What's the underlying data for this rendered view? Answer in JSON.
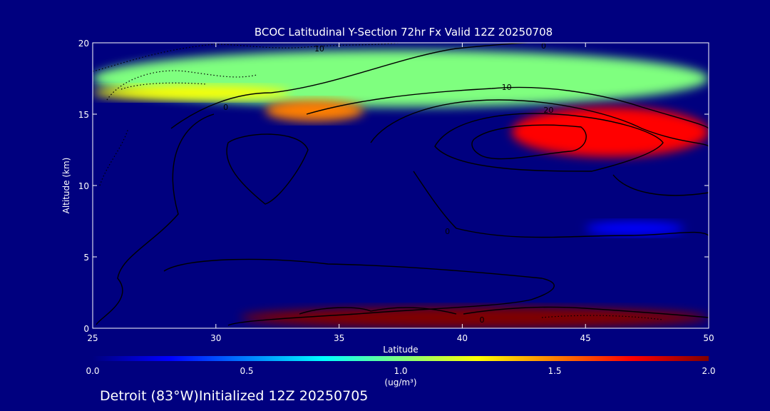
{
  "colors": {
    "background": "#00007f",
    "colormap": [
      "#00007f",
      "#0000ff",
      "#007fff",
      "#00ffff",
      "#7fff7f",
      "#ffff00",
      "#ff7f00",
      "#ff0000",
      "#7f0000"
    ],
    "contour": "#000000"
  },
  "chart_data": {
    "type": "heatmap",
    "title": "BCOC Latitudinal Y-Section 72hr  Fx Valid 12Z 20250708",
    "xlabel": "Latitude",
    "ylabel": "Altitude (km)",
    "xlim": [
      25,
      50
    ],
    "ylim": [
      0,
      20
    ],
    "x_ticks": [
      "25",
      "30",
      "35",
      "40",
      "45",
      "50"
    ],
    "y_ticks": [
      "0",
      "5",
      "10",
      "15",
      "20"
    ],
    "colorbar": {
      "range": [
        0.0,
        2.0
      ],
      "ticks": [
        "0.0",
        "0.5",
        "1.0",
        "1.5",
        "2.0"
      ],
      "units": "(ug/m³)"
    },
    "features": [
      {
        "label": "upper layer",
        "lat": [
          25,
          50
        ],
        "alt": [
          15.5,
          19.5
        ],
        "value": 0.95
      },
      {
        "label": "upper layer core",
        "lat": [
          25,
          33
        ],
        "alt": [
          16.0,
          17.0
        ],
        "value": 1.2
      },
      {
        "label": "plume 34N",
        "lat": [
          32,
          36
        ],
        "alt": [
          14.5,
          16.0
        ],
        "value": 1.6
      },
      {
        "label": "plume 45N",
        "lat": [
          42,
          50
        ],
        "alt": [
          12.0,
          15.5
        ],
        "value": 1.7
      },
      {
        "label": "boundary layer",
        "lat": [
          31,
          50
        ],
        "alt": [
          0,
          1.5
        ],
        "value": 1.9
      },
      {
        "label": "mid-level 47N",
        "lat": [
          45,
          49
        ],
        "alt": [
          6.5,
          7.5
        ],
        "value": 0.35
      }
    ],
    "contour_labels": [
      {
        "text": "10",
        "lat": 34.2,
        "alt": 19.6
      },
      {
        "text": "0",
        "lat": 43.3,
        "alt": 19.8
      },
      {
        "text": "10",
        "lat": 41.8,
        "alt": 16.9
      },
      {
        "text": "20",
        "lat": 43.5,
        "alt": 15.3
      },
      {
        "text": "0",
        "lat": 30.4,
        "alt": 15.5
      },
      {
        "text": "0",
        "lat": 39.4,
        "alt": 6.8
      },
      {
        "text": "0",
        "lat": 40.8,
        "alt": 0.6
      }
    ]
  },
  "footer": {
    "location": "Detroit (83°W)Initialized 12Z 20250705"
  }
}
